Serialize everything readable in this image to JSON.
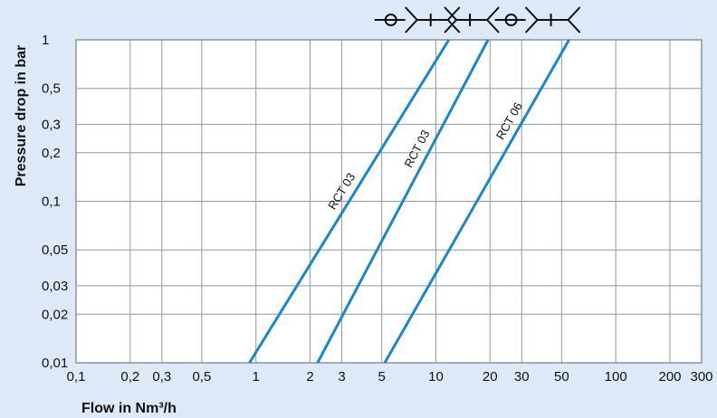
{
  "chart_data": {
    "type": "line",
    "title": "",
    "xlabel": "Flow in Nm³/h",
    "ylabel": "Pressure drop in bar",
    "x_scale": "log",
    "y_scale": "log",
    "xlim": [
      0.1,
      300
    ],
    "ylim": [
      0.01,
      1
    ],
    "x_gridlines": [
      0.1,
      0.2,
      0.3,
      0.5,
      1,
      2,
      3,
      5,
      10,
      20,
      30,
      50,
      100,
      200,
      300
    ],
    "y_gridlines": [
      0.01,
      0.02,
      0.03,
      0.05,
      0.1,
      0.2,
      0.3,
      0.5,
      1
    ],
    "x_ticks": [
      {
        "value": 0.1,
        "label": "0,1"
      },
      {
        "value": 0.2,
        "label": "0,2"
      },
      {
        "value": 0.3,
        "label": "0,3"
      },
      {
        "value": 0.5,
        "label": "0,5"
      },
      {
        "value": 1,
        "label": "1"
      },
      {
        "value": 2,
        "label": "2"
      },
      {
        "value": 3,
        "label": "3"
      },
      {
        "value": 5,
        "label": "5"
      },
      {
        "value": 10,
        "label": "10"
      },
      {
        "value": 20,
        "label": "20"
      },
      {
        "value": 30,
        "label": "30"
      },
      {
        "value": 50,
        "label": "50"
      },
      {
        "value": 100,
        "label": "100"
      },
      {
        "value": 200,
        "label": "200"
      },
      {
        "value": 300,
        "label": "300"
      }
    ],
    "y_ticks": [
      {
        "value": 0.01,
        "label": "0,01"
      },
      {
        "value": 0.02,
        "label": "0,02"
      },
      {
        "value": 0.03,
        "label": "0,03"
      },
      {
        "value": 0.05,
        "label": "0,05"
      },
      {
        "value": 0.1,
        "label": "0,1"
      },
      {
        "value": 0.2,
        "label": "0,2"
      },
      {
        "value": 0.3,
        "label": "0,3"
      },
      {
        "value": 0.5,
        "label": "0,5"
      },
      {
        "value": 1,
        "label": "1"
      }
    ],
    "grid": true,
    "series": [
      {
        "name": "RCT 03",
        "x": [
          0.92,
          11.8
        ],
        "y": [
          0.01,
          1
        ],
        "symbol": "coupling-with-check-valve-icon"
      },
      {
        "name": "RCT 03",
        "x": [
          2.2,
          19.5
        ],
        "y": [
          0.01,
          1
        ],
        "symbol": "coupling-icon"
      },
      {
        "name": "RCT 06",
        "x": [
          5.2,
          55
        ],
        "y": [
          0.01,
          1
        ],
        "symbol": "coupling-with-check-valve-icon"
      }
    ],
    "colors": {
      "background": "#dde9f6",
      "plot": "#ffffff",
      "grid": "#8f99a6",
      "line": "#1a87c9"
    }
  }
}
